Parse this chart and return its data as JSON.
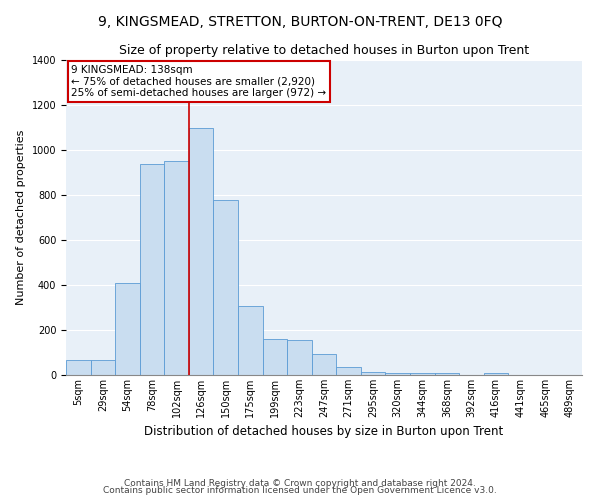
{
  "title": "9, KINGSMEAD, STRETTON, BURTON-ON-TRENT, DE13 0FQ",
  "subtitle": "Size of property relative to detached houses in Burton upon Trent",
  "xlabel": "Distribution of detached houses by size in Burton upon Trent",
  "ylabel": "Number of detached properties",
  "bar_color": "#c9ddf0",
  "bar_edge_color": "#5b9bd5",
  "annotation_line_color": "#cc0000",
  "annotation_box_color": "#cc0000",
  "annotation_text": "9 KINGSMEAD: 138sqm\n← 75% of detached houses are smaller (2,920)\n25% of semi-detached houses are larger (972) →",
  "property_line_index": 4.5,
  "categories": [
    "5sqm",
    "29sqm",
    "54sqm",
    "78sqm",
    "102sqm",
    "126sqm",
    "150sqm",
    "175sqm",
    "199sqm",
    "223sqm",
    "247sqm",
    "271sqm",
    "295sqm",
    "320sqm",
    "344sqm",
    "368sqm",
    "392sqm",
    "416sqm",
    "441sqm",
    "465sqm",
    "489sqm"
  ],
  "values": [
    65,
    65,
    410,
    940,
    950,
    1100,
    780,
    305,
    160,
    155,
    95,
    35,
    13,
    10,
    10,
    8,
    2,
    10,
    2,
    2,
    2
  ],
  "ylim": [
    0,
    1400
  ],
  "yticks": [
    0,
    200,
    400,
    600,
    800,
    1000,
    1200,
    1400
  ],
  "footnote1": "Contains HM Land Registry data © Crown copyright and database right 2024.",
  "footnote2": "Contains public sector information licensed under the Open Government Licence v3.0.",
  "background_color": "#e8f0f8",
  "title_fontsize": 10,
  "subtitle_fontsize": 9,
  "xlabel_fontsize": 8.5,
  "ylabel_fontsize": 8,
  "tick_fontsize": 7,
  "annotation_fontsize": 7.5,
  "footnote_fontsize": 6.5
}
